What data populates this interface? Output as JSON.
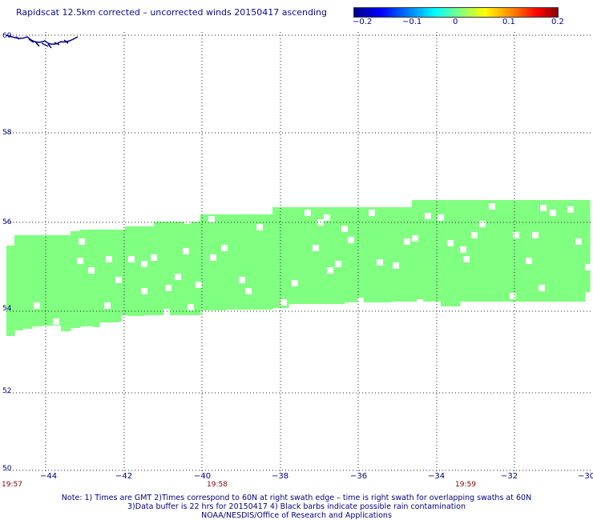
{
  "title": "Rapidscat 12.5km corrected – uncorrected winds 20150417 ascending",
  "colorbar": {
    "labels": [
      "−0.2",
      "−0.1",
      "0",
      "0.1",
      "0.2"
    ],
    "colors": [
      "#00008b",
      "#0000ff",
      "#00ffff",
      "#80ff80",
      "#ffff00",
      "#ff8000",
      "#ff0000",
      "#8b0000"
    ]
  },
  "map": {
    "lat_labels": [
      "60",
      "58",
      "56",
      "54",
      "52",
      "50"
    ],
    "lon_labels": [
      "−44",
      "−42",
      "−40",
      "−38",
      "−36",
      "−34",
      "−32",
      "−30"
    ],
    "time_labels": [
      "19:57",
      "19:58",
      "19:59"
    ],
    "swath_color": "#80ff80",
    "coast_color": "#000080"
  },
  "notes": [
    "Note: 1) Times are GMT 2)Times correspond to 60N at right swath edge – time is right swath for overlapping swaths at 60N",
    "3)Data buffer is 22 hrs for 20150417 4) Black barbs indicate possible rain contamination",
    "NOAA/NESDIS/Office of Research and Applications"
  ]
}
